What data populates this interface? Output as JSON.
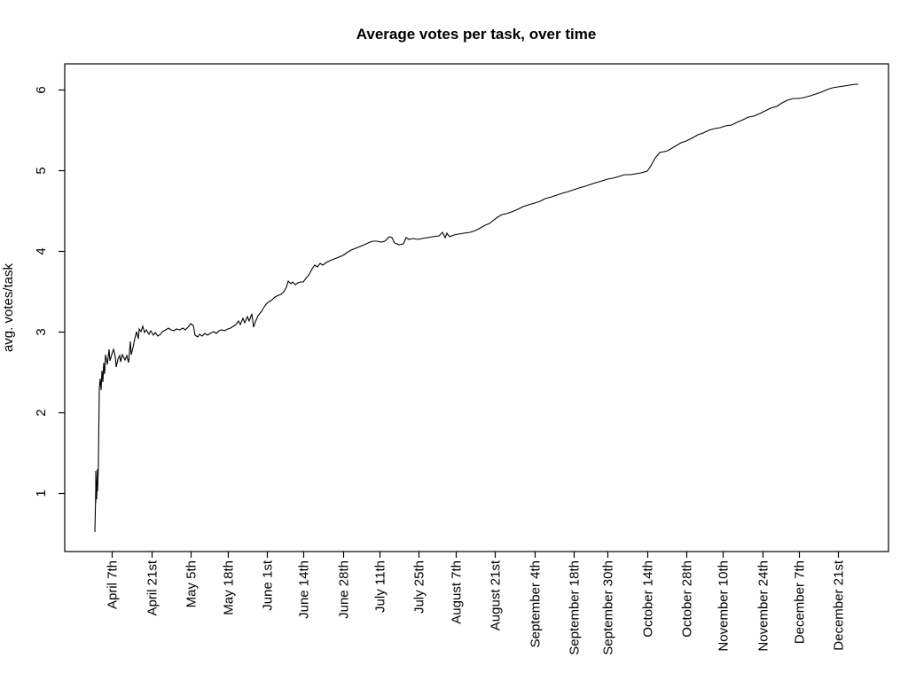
{
  "chart_data": {
    "type": "line",
    "title": "Average votes per task, over time",
    "xlabel": "",
    "ylabel": "avg. votes/task",
    "grid": false,
    "legend": "none",
    "background": "#ffffff",
    "line_color": "#000000",
    "axis_color": "#000000",
    "y_ticks": [
      1,
      2,
      3,
      4,
      5,
      6
    ],
    "ylim": [
      0.276,
      6.324
    ],
    "xlim": [
      -10.8,
      281.8
    ],
    "x_ticks": [
      {
        "label": "April 7th",
        "day": 6
      },
      {
        "label": "April 21st",
        "day": 20
      },
      {
        "label": "May 5th",
        "day": 34
      },
      {
        "label": "May 18th",
        "day": 47
      },
      {
        "label": "June 1st",
        "day": 61
      },
      {
        "label": "June 14th",
        "day": 74
      },
      {
        "label": "June 28th",
        "day": 88
      },
      {
        "label": "July 11th",
        "day": 101
      },
      {
        "label": "July 25th",
        "day": 115
      },
      {
        "label": "August 7th",
        "day": 128
      },
      {
        "label": "August 21st",
        "day": 142
      },
      {
        "label": "September 4th",
        "day": 156
      },
      {
        "label": "September 18th",
        "day": 170
      },
      {
        "label": "September 30th",
        "day": 182
      },
      {
        "label": "October 14th",
        "day": 196
      },
      {
        "label": "October 28th",
        "day": 210
      },
      {
        "label": "November 10th",
        "day": 223
      },
      {
        "label": "November 24th",
        "day": 237
      },
      {
        "label": "December 7th",
        "day": 250
      },
      {
        "label": "December 21st",
        "day": 264
      }
    ],
    "series": [
      {
        "name": "avg. votes/task",
        "points": [
          [
            0,
            0.52
          ],
          [
            0.1,
            1.05
          ],
          [
            0.2,
            0.88
          ],
          [
            0.35,
            1.28
          ],
          [
            0.5,
            0.92
          ],
          [
            0.7,
            1.3
          ],
          [
            0.9,
            1.02
          ],
          [
            1.1,
            1.35
          ],
          [
            1.3,
            1.41
          ],
          [
            1.5,
            2.3
          ],
          [
            1.7,
            2.42
          ],
          [
            2,
            2.28
          ],
          [
            2.3,
            2.52
          ],
          [
            2.6,
            2.38
          ],
          [
            3,
            2.62
          ],
          [
            3.4,
            2.48
          ],
          [
            3.8,
            2.72
          ],
          [
            4.3,
            2.6
          ],
          [
            4.8,
            2.78
          ],
          [
            5.4,
            2.64
          ],
          [
            6,
            2.72
          ],
          [
            6.5,
            2.78
          ],
          [
            7,
            2.7
          ],
          [
            7.5,
            2.56
          ],
          [
            8,
            2.66
          ],
          [
            8.6,
            2.71
          ],
          [
            9.2,
            2.63
          ],
          [
            9.8,
            2.72
          ],
          [
            10.5,
            2.65
          ],
          [
            11.2,
            2.71
          ],
          [
            12,
            2.62
          ],
          [
            12.4,
            2.88
          ],
          [
            12.8,
            2.72
          ],
          [
            13.3,
            2.8
          ],
          [
            14,
            2.92
          ],
          [
            14.6,
            3
          ],
          [
            15.2,
            2.92
          ],
          [
            15.8,
            3.04
          ],
          [
            16.4,
            3
          ],
          [
            17,
            3.07
          ],
          [
            17.6,
            2.99
          ],
          [
            18.3,
            3.03
          ],
          [
            19,
            2.97
          ],
          [
            19.8,
            3.01
          ],
          [
            20.6,
            2.96
          ],
          [
            21.4,
            2.99
          ],
          [
            22.2,
            2.95
          ],
          [
            23.1,
            2.97
          ],
          [
            24,
            3
          ],
          [
            25,
            3.02
          ],
          [
            26,
            3.05
          ],
          [
            27,
            3.03
          ],
          [
            28,
            3.01
          ],
          [
            29,
            3.04
          ],
          [
            30,
            3.02
          ],
          [
            31,
            3.05
          ],
          [
            32,
            3.03
          ],
          [
            33,
            3.06
          ],
          [
            34,
            3.1
          ],
          [
            35,
            3.08
          ],
          [
            35.6,
            2.96
          ],
          [
            36.4,
            2.94
          ],
          [
            37.2,
            2.97
          ],
          [
            38.1,
            2.95
          ],
          [
            39,
            2.98
          ],
          [
            40,
            2.96
          ],
          [
            41,
            2.98
          ],
          [
            42,
            3
          ],
          [
            43,
            2.98
          ],
          [
            44,
            3.01
          ],
          [
            45,
            3.03
          ],
          [
            46,
            3.01
          ],
          [
            47,
            3.04
          ],
          [
            48,
            3.05
          ],
          [
            49,
            3.07
          ],
          [
            50,
            3.09
          ],
          [
            50.8,
            3.14
          ],
          [
            51.6,
            3.09
          ],
          [
            52.4,
            3.17
          ],
          [
            53.2,
            3.11
          ],
          [
            54,
            3.19
          ],
          [
            54.8,
            3.13
          ],
          [
            55.6,
            3.22
          ],
          [
            56.3,
            3.06
          ],
          [
            57,
            3.12
          ],
          [
            58,
            3.2
          ],
          [
            59,
            3.26
          ],
          [
            60,
            3.31
          ],
          [
            61,
            3.35
          ],
          [
            62,
            3.38
          ],
          [
            63,
            3.4
          ],
          [
            64,
            3.43
          ],
          [
            65,
            3.45
          ],
          [
            66,
            3.47
          ],
          [
            67,
            3.5
          ],
          [
            68,
            3.55
          ],
          [
            68.7,
            3.63
          ],
          [
            69.4,
            3.6
          ],
          [
            70.2,
            3.62
          ],
          [
            71,
            3.59
          ],
          [
            72,
            3.61
          ],
          [
            73,
            3.62
          ],
          [
            74,
            3.62
          ],
          [
            75,
            3.66
          ],
          [
            76,
            3.72
          ],
          [
            77,
            3.78
          ],
          [
            78,
            3.83
          ],
          [
            79,
            3.81
          ],
          [
            80,
            3.85
          ],
          [
            81,
            3.83
          ],
          [
            82,
            3.86
          ],
          [
            83.5,
            3.88
          ],
          [
            85,
            3.9
          ],
          [
            86.5,
            3.93
          ],
          [
            88,
            3.95
          ],
          [
            89.5,
            3.98
          ],
          [
            91,
            4.01
          ],
          [
            92.5,
            4.04
          ],
          [
            94,
            4.06
          ],
          [
            95.5,
            4.08
          ],
          [
            97,
            4.1
          ],
          [
            98.5,
            4.12
          ],
          [
            100,
            4.12
          ],
          [
            101.5,
            4.11
          ],
          [
            103,
            4.13
          ],
          [
            104.5,
            4.18
          ],
          [
            105.5,
            4.17
          ],
          [
            106.5,
            4.1
          ],
          [
            108,
            4.08
          ],
          [
            109.5,
            4.09
          ],
          [
            110.5,
            4.17
          ],
          [
            111.5,
            4.15
          ],
          [
            113,
            4.16
          ],
          [
            114.5,
            4.15
          ],
          [
            116,
            4.16
          ],
          [
            118,
            4.17
          ],
          [
            120,
            4.18
          ],
          [
            122,
            4.19
          ],
          [
            123.5,
            4.23
          ],
          [
            124.3,
            4.17
          ],
          [
            125.1,
            4.22
          ],
          [
            126,
            4.18
          ],
          [
            127.5,
            4.2
          ],
          [
            129,
            4.21
          ],
          [
            131,
            4.22
          ],
          [
            133,
            4.24
          ],
          [
            135,
            4.26
          ],
          [
            137,
            4.29
          ],
          [
            138.5,
            4.32
          ],
          [
            140,
            4.35
          ],
          [
            141.5,
            4.39
          ],
          [
            143,
            4.42
          ],
          [
            144.5,
            4.45
          ],
          [
            146,
            4.47
          ],
          [
            148,
            4.49
          ],
          [
            150,
            4.52
          ],
          [
            152,
            4.55
          ],
          [
            154,
            4.58
          ],
          [
            156,
            4.6
          ],
          [
            158,
            4.62
          ],
          [
            160,
            4.65
          ],
          [
            162,
            4.67
          ],
          [
            164,
            4.7
          ],
          [
            166,
            4.72
          ],
          [
            168,
            4.74
          ],
          [
            170,
            4.76
          ],
          [
            172,
            4.78
          ],
          [
            174,
            4.81
          ],
          [
            176,
            4.83
          ],
          [
            178,
            4.85
          ],
          [
            180,
            4.87
          ],
          [
            182,
            4.89
          ],
          [
            184,
            4.91
          ],
          [
            186,
            4.93
          ],
          [
            188,
            4.95
          ],
          [
            190,
            4.95
          ],
          [
            192,
            4.96
          ],
          [
            194,
            4.97
          ],
          [
            196,
            4.99
          ],
          [
            197.5,
            5.06
          ],
          [
            199,
            5.16
          ],
          [
            200.5,
            5.22
          ],
          [
            202,
            5.24
          ],
          [
            203.5,
            5.25
          ],
          [
            205,
            5.28
          ],
          [
            206.5,
            5.31
          ],
          [
            208,
            5.34
          ],
          [
            210,
            5.37
          ],
          [
            212,
            5.4
          ],
          [
            214,
            5.44
          ],
          [
            216,
            5.47
          ],
          [
            218,
            5.5
          ],
          [
            220,
            5.52
          ],
          [
            222,
            5.53
          ],
          [
            224,
            5.55
          ],
          [
            226,
            5.57
          ],
          [
            228,
            5.6
          ],
          [
            230,
            5.63
          ],
          [
            232,
            5.66
          ],
          [
            234,
            5.68
          ],
          [
            236,
            5.71
          ],
          [
            238,
            5.74
          ],
          [
            240,
            5.77
          ],
          [
            242,
            5.8
          ],
          [
            244,
            5.84
          ],
          [
            246,
            5.87
          ],
          [
            248,
            5.89
          ],
          [
            250,
            5.9
          ],
          [
            252,
            5.91
          ],
          [
            254,
            5.93
          ],
          [
            256,
            5.95
          ],
          [
            258,
            5.97
          ],
          [
            260,
            6
          ],
          [
            262,
            6.03
          ],
          [
            264,
            6.04
          ],
          [
            266,
            6.05
          ],
          [
            268,
            6.06
          ],
          [
            270,
            6.07
          ],
          [
            271,
            6.07
          ]
        ]
      }
    ]
  }
}
